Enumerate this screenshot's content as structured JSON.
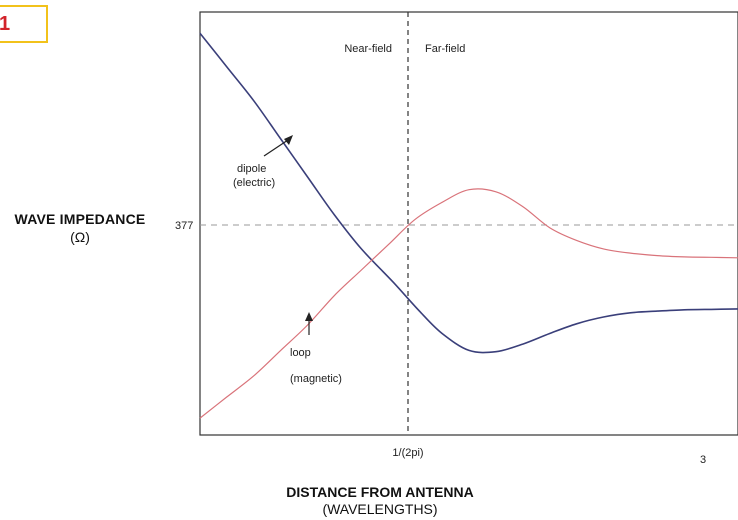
{
  "badge": {
    "label": "1",
    "border_color": "#f2c21b",
    "text_color": "#d2232a"
  },
  "chart_data": {
    "type": "line",
    "title": "",
    "ylabel": "WAVE IMPEDANCE",
    "ylabel_unit": "(Ω)",
    "xlabel": "DISTANCE FROM ANTENNA",
    "xlabel_unit": "(WAVELENGTHS)",
    "x_ticks": [
      {
        "value": 0.159,
        "label": "1/(2pi)"
      },
      {
        "value": 3,
        "label": "3"
      }
    ],
    "y_ticks": [
      {
        "value": 377,
        "label": "377"
      }
    ],
    "xlim": [
      0.02,
      3.5
    ],
    "ylim": [
      0,
      1
    ],
    "region_labels": {
      "near": "Near-field",
      "far": "Far-field",
      "boundary_x": 0.159
    },
    "reference_line": {
      "y": 377,
      "style": "dashed"
    },
    "series": [
      {
        "name": "dipole (electric)",
        "annotation": [
          "dipole",
          "(electric)"
        ],
        "color": "#3a3f7a",
        "points": [
          [
            0.0,
            0.95
          ],
          [
            0.05,
            0.87
          ],
          [
            0.1,
            0.79
          ],
          [
            0.15,
            0.7
          ],
          [
            0.2,
            0.61
          ],
          [
            0.25,
            0.52
          ],
          [
            0.3,
            0.44
          ],
          [
            0.36,
            0.36
          ],
          [
            0.41,
            0.29
          ],
          [
            0.45,
            0.24
          ],
          [
            0.5,
            0.2
          ],
          [
            0.55,
            0.197
          ],
          [
            0.6,
            0.215
          ],
          [
            0.65,
            0.24
          ],
          [
            0.7,
            0.263
          ],
          [
            0.75,
            0.279
          ],
          [
            0.8,
            0.289
          ],
          [
            0.85,
            0.293
          ],
          [
            0.9,
            0.296
          ],
          [
            0.95,
            0.297
          ],
          [
            1.0,
            0.298
          ]
        ]
      },
      {
        "name": "loop (magnetic)",
        "annotation": [
          "loop",
          "(magnetic)"
        ],
        "color": "#d9737a",
        "points": [
          [
            0.0,
            0.04
          ],
          [
            0.05,
            0.09
          ],
          [
            0.1,
            0.14
          ],
          [
            0.15,
            0.2
          ],
          [
            0.2,
            0.26
          ],
          [
            0.25,
            0.33
          ],
          [
            0.3,
            0.39
          ],
          [
            0.35,
            0.45
          ],
          [
            0.4,
            0.51
          ],
          [
            0.45,
            0.55
          ],
          [
            0.5,
            0.58
          ],
          [
            0.55,
            0.575
          ],
          [
            0.6,
            0.54
          ],
          [
            0.65,
            0.49
          ],
          [
            0.7,
            0.46
          ],
          [
            0.75,
            0.44
          ],
          [
            0.8,
            0.43
          ],
          [
            0.85,
            0.424
          ],
          [
            0.9,
            0.421
          ],
          [
            0.95,
            0.42
          ],
          [
            1.0,
            0.419
          ]
        ]
      }
    ],
    "grid": false
  }
}
